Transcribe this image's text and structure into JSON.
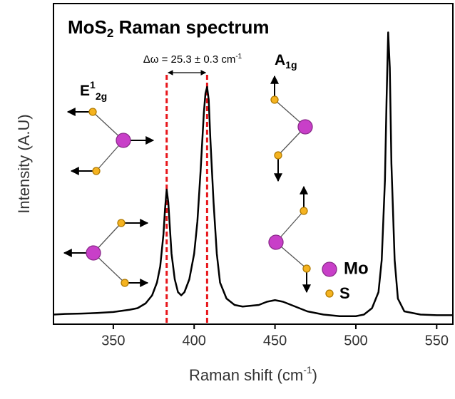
{
  "chart_data": {
    "type": "line",
    "title": [
      "MoS",
      "2",
      " Raman spectrum"
    ],
    "x_label": [
      "Raman shift (cm",
      "-1",
      ")"
    ],
    "y_label": "Intensity (A.U)",
    "x": [
      313,
      320,
      330,
      340,
      350,
      360,
      365,
      370,
      374,
      377,
      379,
      381,
      382,
      383,
      384,
      385,
      386,
      388,
      390,
      392,
      394,
      397,
      400,
      402,
      404,
      406,
      407,
      408,
      409,
      410,
      412,
      414,
      416,
      420,
      425,
      430,
      440,
      445,
      450,
      455,
      460,
      470,
      480,
      490,
      500,
      505,
      510,
      514,
      516,
      518,
      519,
      520,
      521,
      522,
      524,
      526,
      530,
      540,
      550,
      560
    ],
    "values": [
      0.03,
      0.032,
      0.033,
      0.035,
      0.038,
      0.045,
      0.05,
      0.065,
      0.09,
      0.13,
      0.18,
      0.28,
      0.36,
      0.42,
      0.38,
      0.3,
      0.22,
      0.14,
      0.1,
      0.09,
      0.1,
      0.14,
      0.22,
      0.32,
      0.48,
      0.66,
      0.72,
      0.74,
      0.7,
      0.58,
      0.38,
      0.22,
      0.13,
      0.08,
      0.06,
      0.055,
      0.06,
      0.07,
      0.075,
      0.07,
      0.06,
      0.04,
      0.03,
      0.025,
      0.025,
      0.03,
      0.05,
      0.1,
      0.2,
      0.45,
      0.7,
      0.91,
      0.8,
      0.5,
      0.2,
      0.08,
      0.04,
      0.03,
      0.028,
      0.028
    ],
    "color": "#000000",
    "xlim": [
      313,
      560
    ],
    "ylim": [
      0,
      1
    ],
    "xticks": [
      350,
      400,
      450,
      500,
      550
    ],
    "markers": [
      383,
      408
    ],
    "marker_color": "#e8161b",
    "annotation": [
      "Δω = 25.3 ± 0.3 cm",
      "-1"
    ],
    "mode_labels": {
      "e2g": [
        "E",
        "1",
        "2g"
      ],
      "a1g": [
        "A",
        "1g"
      ]
    },
    "legend": [
      "Mo",
      "S"
    ]
  }
}
